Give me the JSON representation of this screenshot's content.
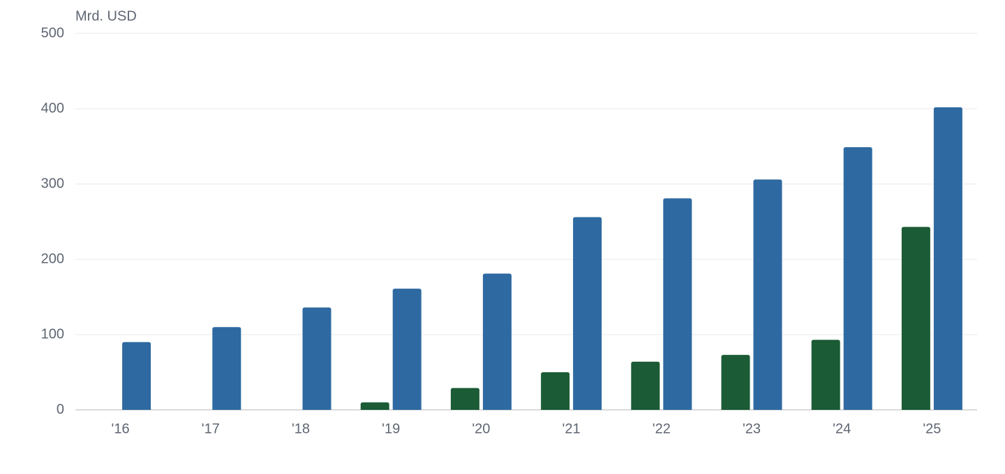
{
  "chart_data": {
    "type": "bar",
    "y_label": "Mrd. USD",
    "categories": [
      "'16",
      "'17",
      "'18",
      "'19",
      "'20",
      "'21",
      "'22",
      "'23",
      "'24",
      "'25"
    ],
    "series": [
      {
        "color": "#1b5b35",
        "values": [
          null,
          null,
          null,
          10,
          29,
          50,
          64,
          73,
          93,
          243
        ]
      },
      {
        "color": "#2e6aa1",
        "values": [
          90,
          110,
          136,
          161,
          181,
          256,
          281,
          306,
          349,
          402
        ]
      }
    ],
    "ylim": [
      0,
      500
    ],
    "yticks": [
      0,
      100,
      200,
      300,
      400,
      500
    ],
    "grid": true
  }
}
